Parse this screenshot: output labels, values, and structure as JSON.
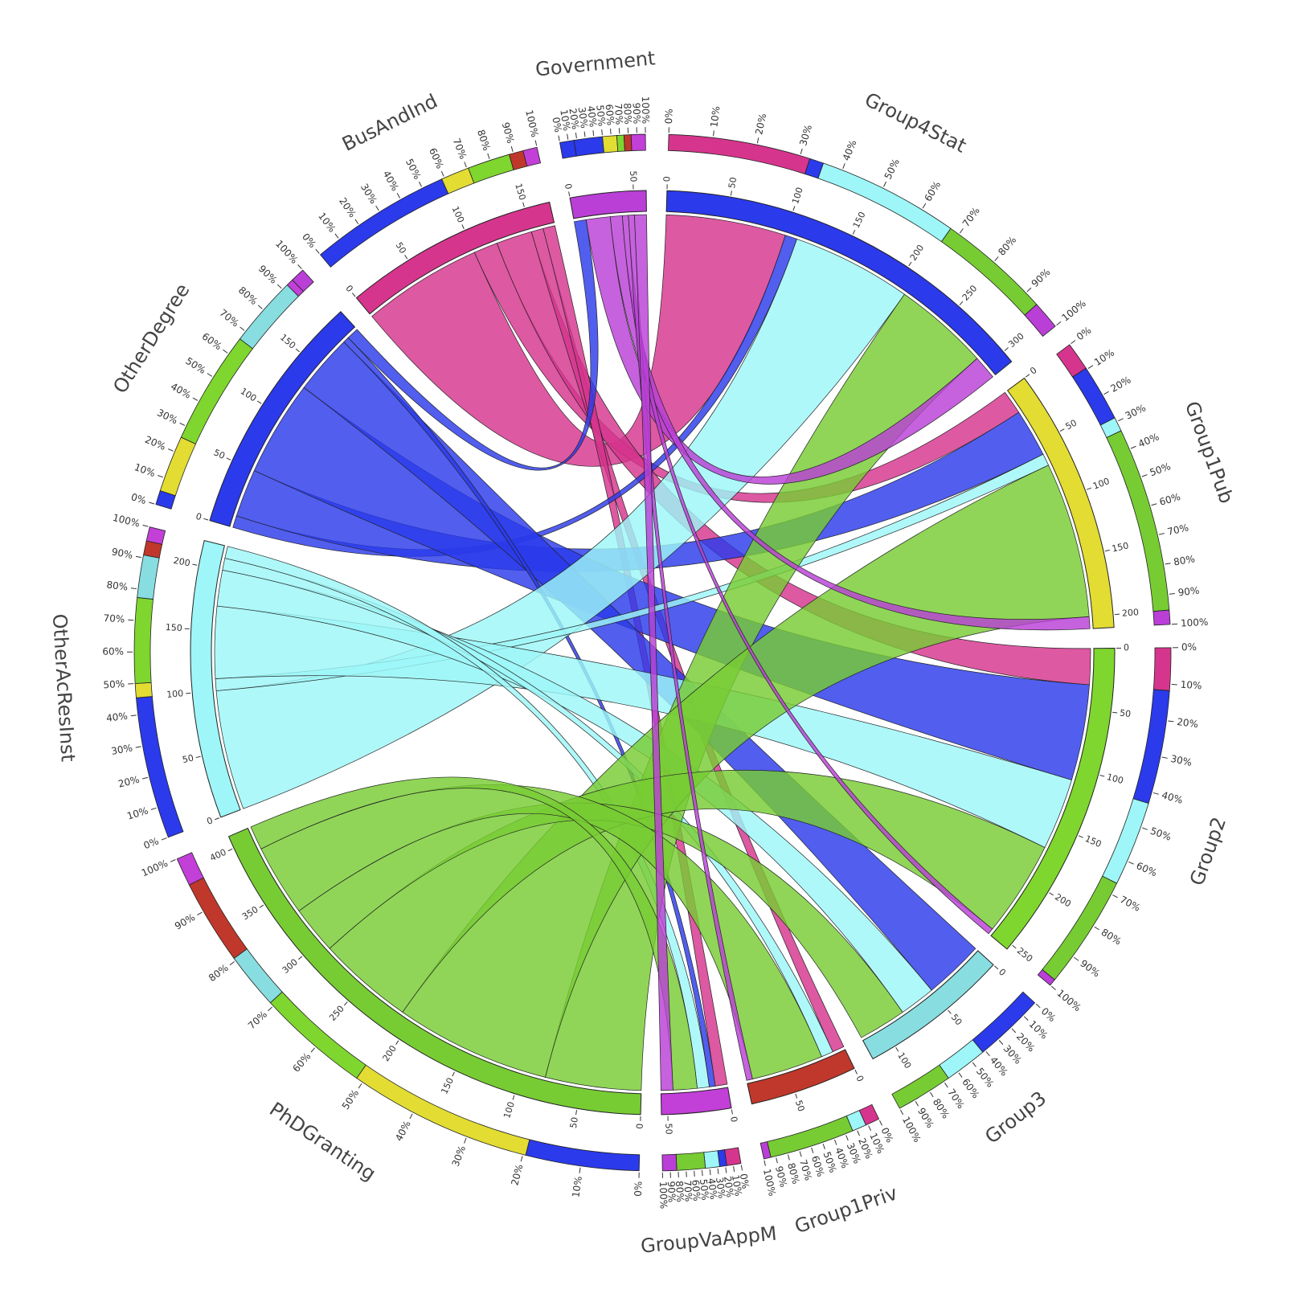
{
  "chart_data": {
    "type": "chord",
    "nodes": [
      {
        "name": "Government",
        "color": "#b93fd6"
      },
      {
        "name": "Group4Stat",
        "color": "#2b3aea"
      },
      {
        "name": "Group1Pub",
        "color": "#e2dc33"
      },
      {
        "name": "Group2",
        "color": "#7fd62e"
      },
      {
        "name": "Group3",
        "color": "#88dde0"
      },
      {
        "name": "Group1Priv",
        "color": "#c0382b"
      },
      {
        "name": "GroupVaAppM",
        "color": "#c23fd8"
      },
      {
        "name": "PhDGranting",
        "color": "#77cc33"
      },
      {
        "name": "OtherAcResInst",
        "color": "#9ef6f8"
      },
      {
        "name": "OtherDegree",
        "color": "#2b3aea"
      },
      {
        "name": "BusAndInd",
        "color": "#d6358d"
      }
    ],
    "links": [
      {
        "source": 10,
        "target": 1,
        "value": 100
      },
      {
        "source": 10,
        "target": 2,
        "value": 20
      },
      {
        "source": 10,
        "target": 3,
        "value": 30
      },
      {
        "source": 10,
        "target": 5,
        "value": 10
      },
      {
        "source": 10,
        "target": 6,
        "value": 10
      },
      {
        "source": 9,
        "target": 1,
        "value": 10
      },
      {
        "source": 9,
        "target": 2,
        "value": 40
      },
      {
        "source": 9,
        "target": 3,
        "value": 80
      },
      {
        "source": 9,
        "target": 4,
        "value": 50
      },
      {
        "source": 9,
        "target": 6,
        "value": 5
      },
      {
        "source": 9,
        "target": 0,
        "value": 10
      },
      {
        "source": 8,
        "target": 1,
        "value": 100
      },
      {
        "source": 8,
        "target": 2,
        "value": 10
      },
      {
        "source": 8,
        "target": 3,
        "value": 60
      },
      {
        "source": 8,
        "target": 4,
        "value": 30
      },
      {
        "source": 8,
        "target": 5,
        "value": 10
      },
      {
        "source": 8,
        "target": 6,
        "value": 10
      },
      {
        "source": 7,
        "target": 1,
        "value": 80
      },
      {
        "source": 7,
        "target": 2,
        "value": 130
      },
      {
        "source": 7,
        "target": 3,
        "value": 80
      },
      {
        "source": 7,
        "target": 4,
        "value": 40
      },
      {
        "source": 7,
        "target": 5,
        "value": 60
      },
      {
        "source": 7,
        "target": 6,
        "value": 20
      },
      {
        "source": 0,
        "target": 1,
        "value": 20
      },
      {
        "source": 0,
        "target": 2,
        "value": 10
      },
      {
        "source": 0,
        "target": 3,
        "value": 5
      },
      {
        "source": 0,
        "target": 5,
        "value": 5
      },
      {
        "source": 0,
        "target": 6,
        "value": 10
      }
    ],
    "count_ticks": [
      0,
      50,
      100,
      150,
      200,
      250,
      300,
      350,
      400
    ],
    "percent_ticks": [
      {
        "value": 0,
        "label": "0%"
      },
      {
        "value": 10,
        "label": "10%"
      },
      {
        "value": 20,
        "label": "20%"
      },
      {
        "value": 30,
        "label": "30%"
      },
      {
        "value": 40,
        "label": "40%"
      },
      {
        "value": 50,
        "label": "50%"
      },
      {
        "value": 60,
        "label": "60%"
      },
      {
        "value": 70,
        "label": "70%"
      },
      {
        "value": 80,
        "label": "80%"
      },
      {
        "value": 90,
        "label": "90%"
      },
      {
        "value": 100,
        "label": "100%"
      }
    ]
  }
}
